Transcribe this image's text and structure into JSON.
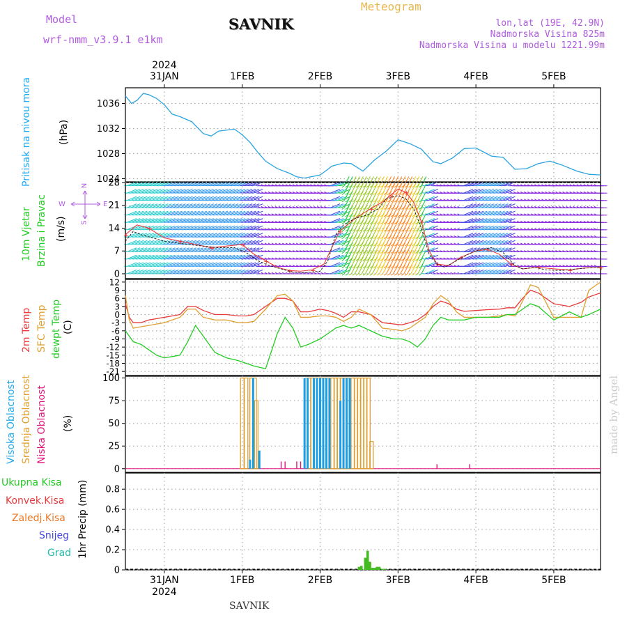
{
  "header": {
    "model_label": "Model",
    "model_name": "wrf-nmm_v3.9.1  e1km",
    "station": "SAVNIK",
    "meteogram": "Meteogram",
    "lonlat": "lon,lat (19E, 42.9N)",
    "elevation": "Nadmorska Visina 825m",
    "model_elevation": "Nadmorska Visina u modelu 1221.99m",
    "footer_station": "SAVNIK",
    "watermark": "made by Angel",
    "year": "2024",
    "date_ticks": [
      "31JAN",
      "1FEB",
      "2FEB",
      "3FEB",
      "4FEB",
      "5FEB"
    ]
  },
  "colors": {
    "pressure": "#29a3e0",
    "temp2m": "#e83a3a",
    "sfc": "#e0a030",
    "dewpt": "#22cc22",
    "high_cloud": "#1b9ee6",
    "mid_cloud": "#e0a030",
    "low_cloud": "#e0187a",
    "precip_total": "#44bb22",
    "label_cyan": "#22aaee",
    "label_purple": "#b05ae0",
    "label_orange": "#e8b850"
  },
  "chart_data": [
    {
      "type": "line",
      "title": "Pritisak na nivou mora",
      "ylabel": "(hPa)",
      "yticks": [
        "1036",
        "1032",
        "1028",
        "1024"
      ],
      "ylim": [
        1023.5,
        1038.5
      ],
      "x_day": [
        -0.5,
        -0.42,
        -0.35,
        -0.27,
        -0.2,
        -0.1,
        0,
        0.1,
        0.2,
        0.35,
        0.5,
        0.6,
        0.7,
        0.9,
        1.0,
        1.1,
        1.2,
        1.3,
        1.45,
        1.6,
        1.7,
        1.8,
        2.0,
        2.1,
        2.15,
        2.3,
        2.4,
        2.55,
        2.7,
        2.85,
        3.0,
        3.15,
        3.3,
        3.45,
        3.55,
        3.7,
        3.85,
        4.0,
        4.2,
        4.35,
        4.5,
        4.65,
        4.8,
        4.95,
        5.1,
        5.3,
        5.45,
        5.6
      ],
      "values": [
        1037.2,
        1036.0,
        1036.5,
        1037.6,
        1037.4,
        1036.8,
        1035.8,
        1034.3,
        1033.9,
        1033.1,
        1031.2,
        1030.8,
        1031.6,
        1031.9,
        1031.0,
        1029.8,
        1028.2,
        1026.8,
        1025.6,
        1024.9,
        1024.3,
        1024.1,
        1024.6,
        1025.5,
        1026.0,
        1026.5,
        1026.4,
        1025.2,
        1027.0,
        1028.4,
        1030.2,
        1029.6,
        1028.7,
        1026.7,
        1026.4,
        1027.3,
        1028.8,
        1028.9,
        1027.6,
        1027.4,
        1025.5,
        1025.6,
        1026.4,
        1026.8,
        1026.2,
        1025.2,
        1024.7,
        1024.6
      ],
      "series": [
        {
          "name": "Pritisak na nivou mora"
        }
      ]
    },
    {
      "type": "line",
      "title": "10m Vjetar Brzina i Pravac",
      "ylabel": "(m/s)",
      "yticks": [
        "28",
        "21",
        "14",
        "7",
        "0"
      ],
      "ylim": [
        -1.5,
        28
      ],
      "compass": {
        "n": "N",
        "w": "W",
        "e": "E",
        "s": "S"
      },
      "wind_speed_x_day": [
        -0.5,
        -0.4,
        -0.3,
        -0.15,
        0,
        0.15,
        0.3,
        0.5,
        0.7,
        0.9,
        1.05,
        1.2,
        1.35,
        1.5,
        1.65,
        1.8,
        2.0,
        2.1,
        2.2,
        2.3,
        2.45,
        2.6,
        2.75,
        2.85,
        3.0,
        3.1,
        3.2,
        3.3,
        3.4,
        3.5,
        3.6,
        3.75,
        3.9,
        4.05,
        4.2,
        4.35,
        4.5,
        4.6,
        4.75,
        4.9,
        5.1,
        5.3,
        5.45,
        5.6
      ],
      "wind_speed": [
        10,
        13,
        12,
        11,
        10,
        9.5,
        9,
        8.5,
        8,
        8,
        6.5,
        4,
        2.5,
        1.5,
        0.5,
        0.3,
        0.8,
        4,
        12,
        15,
        17,
        18,
        20,
        23,
        24,
        23,
        20,
        14,
        6,
        3,
        2,
        4,
        6,
        7.5,
        8,
        6.5,
        2.5,
        1.5,
        2,
        1.2,
        1,
        1.5,
        1.8,
        2
      ],
      "gust_x_day": [
        -0.5,
        -0.35,
        -0.2,
        0,
        0.2,
        0.4,
        0.6,
        0.8,
        1.0,
        1.15,
        1.3,
        1.45,
        1.6,
        1.75,
        1.9,
        2.05,
        2.25,
        2.45,
        2.65,
        2.8,
        2.9,
        3.0,
        3.1,
        3.2,
        3.3,
        3.4,
        3.5,
        3.65,
        3.8,
        4.0,
        4.15,
        4.3,
        4.45,
        4.6,
        4.8,
        5.0,
        5.2,
        5.4,
        5.6
      ],
      "gust": [
        12,
        15,
        14,
        11,
        10,
        9,
        8,
        8.5,
        9,
        6,
        4,
        2,
        1,
        0.8,
        1.2,
        3,
        13,
        17,
        20,
        22,
        24,
        26,
        25,
        22,
        16,
        7,
        3,
        2.5,
        5,
        7,
        7.5,
        6,
        3,
        1.5,
        2,
        1.5,
        1.2,
        1.8,
        2
      ]
    },
    {
      "type": "line",
      "title": "Temperatura",
      "ylabel": "(C)",
      "yticks": [
        "12",
        "9",
        "6",
        "3",
        "0",
        "-3",
        "-6",
        "-9",
        "-12",
        "-15",
        "-18",
        "-21"
      ],
      "ylim": [
        -22.5,
        13
      ],
      "x_day": [
        -0.5,
        -0.45,
        -0.4,
        -0.3,
        -0.2,
        -0.1,
        0,
        0.2,
        0.3,
        0.4,
        0.5,
        0.65,
        0.8,
        0.95,
        1.05,
        1.15,
        1.3,
        1.45,
        1.55,
        1.65,
        1.75,
        1.85,
        2.0,
        2.1,
        2.2,
        2.3,
        2.4,
        2.5,
        2.65,
        2.8,
        2.95,
        3.05,
        3.15,
        3.25,
        3.35,
        3.45,
        3.55,
        3.65,
        3.75,
        3.85,
        4.0,
        4.15,
        4.3,
        4.4,
        4.5,
        4.6,
        4.7,
        4.8,
        5.0,
        5.2,
        5.35,
        5.45,
        5.6
      ],
      "series": [
        {
          "name": "2m Temp",
          "values": [
            4,
            -1,
            -3,
            -3,
            -2,
            -1.5,
            -1,
            0,
            3,
            3,
            1.5,
            0,
            0,
            -0.5,
            -0.5,
            0,
            3,
            6,
            6,
            5,
            1,
            1,
            2,
            1.5,
            0.5,
            -1,
            1,
            1,
            0,
            -3,
            -3.5,
            -3.8,
            -3,
            -2,
            0,
            3,
            5,
            4,
            2,
            1.2,
            1.5,
            1.8,
            2,
            2.5,
            2.5,
            6,
            9,
            8,
            4,
            3,
            4.5,
            6.5,
            8
          ]
        },
        {
          "name": "SFC Temp",
          "values": [
            7,
            -2,
            -5,
            -4.5,
            -4,
            -3.5,
            -3,
            -1,
            2,
            2,
            -1,
            -2,
            -2,
            -3,
            -3,
            -2.5,
            2,
            7,
            7.5,
            5,
            -1,
            -1,
            -0.5,
            -0.5,
            -1,
            -2.5,
            -1,
            2,
            0,
            -5,
            -5.5,
            -6,
            -5,
            -3,
            -1,
            4,
            7,
            5,
            1,
            -1,
            -1,
            -1,
            -0.5,
            0,
            -0.5,
            5,
            11,
            10,
            -1,
            -1,
            -1,
            9,
            12
          ]
        },
        {
          "name": "dewpt Temp",
          "values": [
            -6,
            -8,
            -10,
            -11,
            -13,
            -15,
            -16,
            -15,
            -10,
            -4,
            -8,
            -14,
            -16,
            -17,
            -18,
            -19,
            -20,
            -7,
            -1,
            -5,
            -12,
            -11,
            -9,
            -7,
            -5,
            -4,
            -5,
            -4,
            -6,
            -8,
            -9,
            -9,
            -10,
            -12,
            -9,
            -4,
            -1,
            -2,
            -2,
            -2,
            -1,
            -1,
            -1,
            0,
            0,
            2,
            4,
            3,
            -2,
            1,
            -1,
            0,
            2
          ]
        }
      ]
    },
    {
      "type": "bar",
      "title": "Oblacnost",
      "ylabel": "(%)",
      "yticks": [
        "100",
        "75",
        "50",
        "25",
        "0"
      ],
      "ylim": [
        -4,
        102
      ],
      "series": [
        {
          "name": "Visoka Oblacnost",
          "x_day": [
            1.1,
            1.14,
            1.22,
            1.8,
            1.84,
            1.92,
            1.96,
            2.0,
            2.04,
            2.08,
            2.12,
            2.26,
            2.3,
            2.34,
            2.38
          ],
          "values": [
            10,
            100,
            20,
            100,
            100,
            100,
            100,
            100,
            100,
            100,
            100,
            75,
            100,
            100,
            100
          ]
        },
        {
          "name": "Srednja Oblacnost",
          "x_day": [
            1.0,
            1.05,
            1.12,
            1.16,
            1.18,
            1.86,
            1.9,
            1.94,
            1.98,
            2.02,
            2.06,
            2.1,
            2.16,
            2.2,
            2.24,
            2.28,
            2.32,
            2.36,
            2.42,
            2.46,
            2.5,
            2.54,
            2.58,
            2.62,
            2.66,
            2.7
          ],
          "values": [
            100,
            100,
            100,
            100,
            75,
            100,
            100,
            100,
            100,
            100,
            100,
            100,
            100,
            100,
            100,
            100,
            100,
            100,
            100,
            100,
            100,
            100,
            100,
            100,
            30,
            0
          ]
        },
        {
          "name": "Niska Oblacnost",
          "x_day": [
            1.5,
            1.55,
            1.7,
            1.75,
            3.5,
            3.92
          ],
          "values": [
            8,
            8,
            8,
            8,
            5,
            5
          ]
        }
      ]
    },
    {
      "type": "bar",
      "title": "1hr Precip",
      "ylabel": "1hr Precip (mm)",
      "yticks": [
        "0.8",
        "0.6",
        "0.4",
        "0.2",
        "0"
      ],
      "ylim": [
        0,
        0.96
      ],
      "series": [
        {
          "name": "Ukupna Kisa",
          "x_day": [
            2.5,
            2.53,
            2.58,
            2.61,
            2.64,
            2.67,
            2.7,
            2.73,
            2.76,
            2.8,
            2.83
          ],
          "values": [
            0.03,
            0.04,
            0.12,
            0.19,
            0.08,
            0.02,
            0.02,
            0.03,
            0.03,
            0.01,
            0.01
          ]
        },
        {
          "name": "Konvek.Kisa",
          "values": []
        },
        {
          "name": "Zaledj.Kisa",
          "values": []
        },
        {
          "name": "Snijeg",
          "values": []
        },
        {
          "name": "Grad",
          "values": []
        }
      ]
    }
  ],
  "labels": {
    "pressure_title": "Pritisak na nivou mora",
    "pressure_unit": "(hPa)",
    "wind_title1": "10m Vjetar",
    "wind_title2": "Brzina i Pravac",
    "wind_unit": "(m/s)",
    "temp_2m": "2m Temp",
    "temp_sfc": "SFC Temp",
    "temp_dew": "dewpt Temp",
    "temp_unit": "(C)",
    "cloud_high": "Visoka Oblacnost",
    "cloud_mid": "Srednja Oblacnost",
    "cloud_low": "Niska Oblacnost",
    "cloud_unit": "(%)",
    "precip_total": "Ukupna Kisa",
    "precip_conv": "Konvek.Kisa",
    "precip_frz": "Zaledj.Kisa",
    "precip_snow": "Snijeg",
    "precip_hail": "Grad",
    "precip_unit": "1hr Precip (mm)"
  }
}
